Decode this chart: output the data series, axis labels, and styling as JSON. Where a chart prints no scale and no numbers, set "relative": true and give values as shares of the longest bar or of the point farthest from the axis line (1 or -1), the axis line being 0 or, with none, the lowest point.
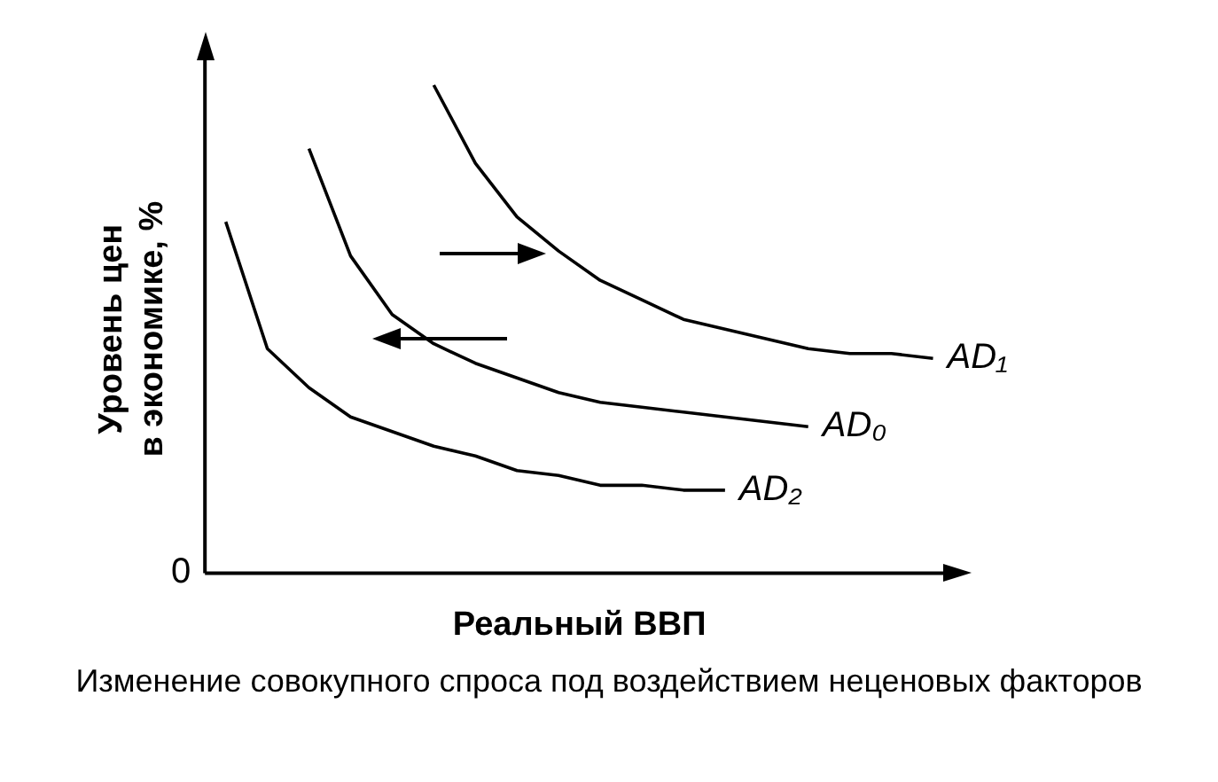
{
  "chart_data": {
    "type": "line",
    "relative": true,
    "ylabel": "Уровень цен\nв экономике, %",
    "xlabel": "Реальный ВВП",
    "annotations": [
      "0",
      "Изменение совокупного спроса под воздействием неценовых факторов"
    ],
    "grid": false,
    "legend": false,
    "marker": "none",
    "line_style": "solid",
    "categories": [
      null,
      null,
      null,
      null,
      null,
      null,
      null,
      null,
      null,
      null,
      null,
      null,
      null,
      null,
      null,
      null,
      null,
      null
    ],
    "series": [
      {
        "name": "AD₁",
        "color": "#000000",
        "values": [
          null,
          null,
          null,
          null,
          null,
          1,
          0.84,
          0.73,
          0.66,
          0.6,
          0.56,
          0.52,
          0.5,
          0.48,
          0.46,
          0.45,
          0.45,
          0.44
        ]
      },
      {
        "name": "AD₀",
        "color": "#000000",
        "values": [
          null,
          null,
          0.87,
          0.65,
          0.53,
          0.47,
          0.43,
          0.4,
          0.37,
          0.35,
          0.34,
          0.33,
          0.32,
          0.31,
          0.3,
          null,
          null,
          null
        ]
      },
      {
        "name": "AD₂",
        "color": "#000000",
        "values": [
          0.72,
          0.46,
          0.38,
          0.32,
          0.29,
          0.26,
          0.24,
          0.21,
          0.2,
          0.18,
          0.18,
          0.17,
          0.17,
          null,
          null,
          null,
          null,
          null
        ]
      }
    ]
  }
}
